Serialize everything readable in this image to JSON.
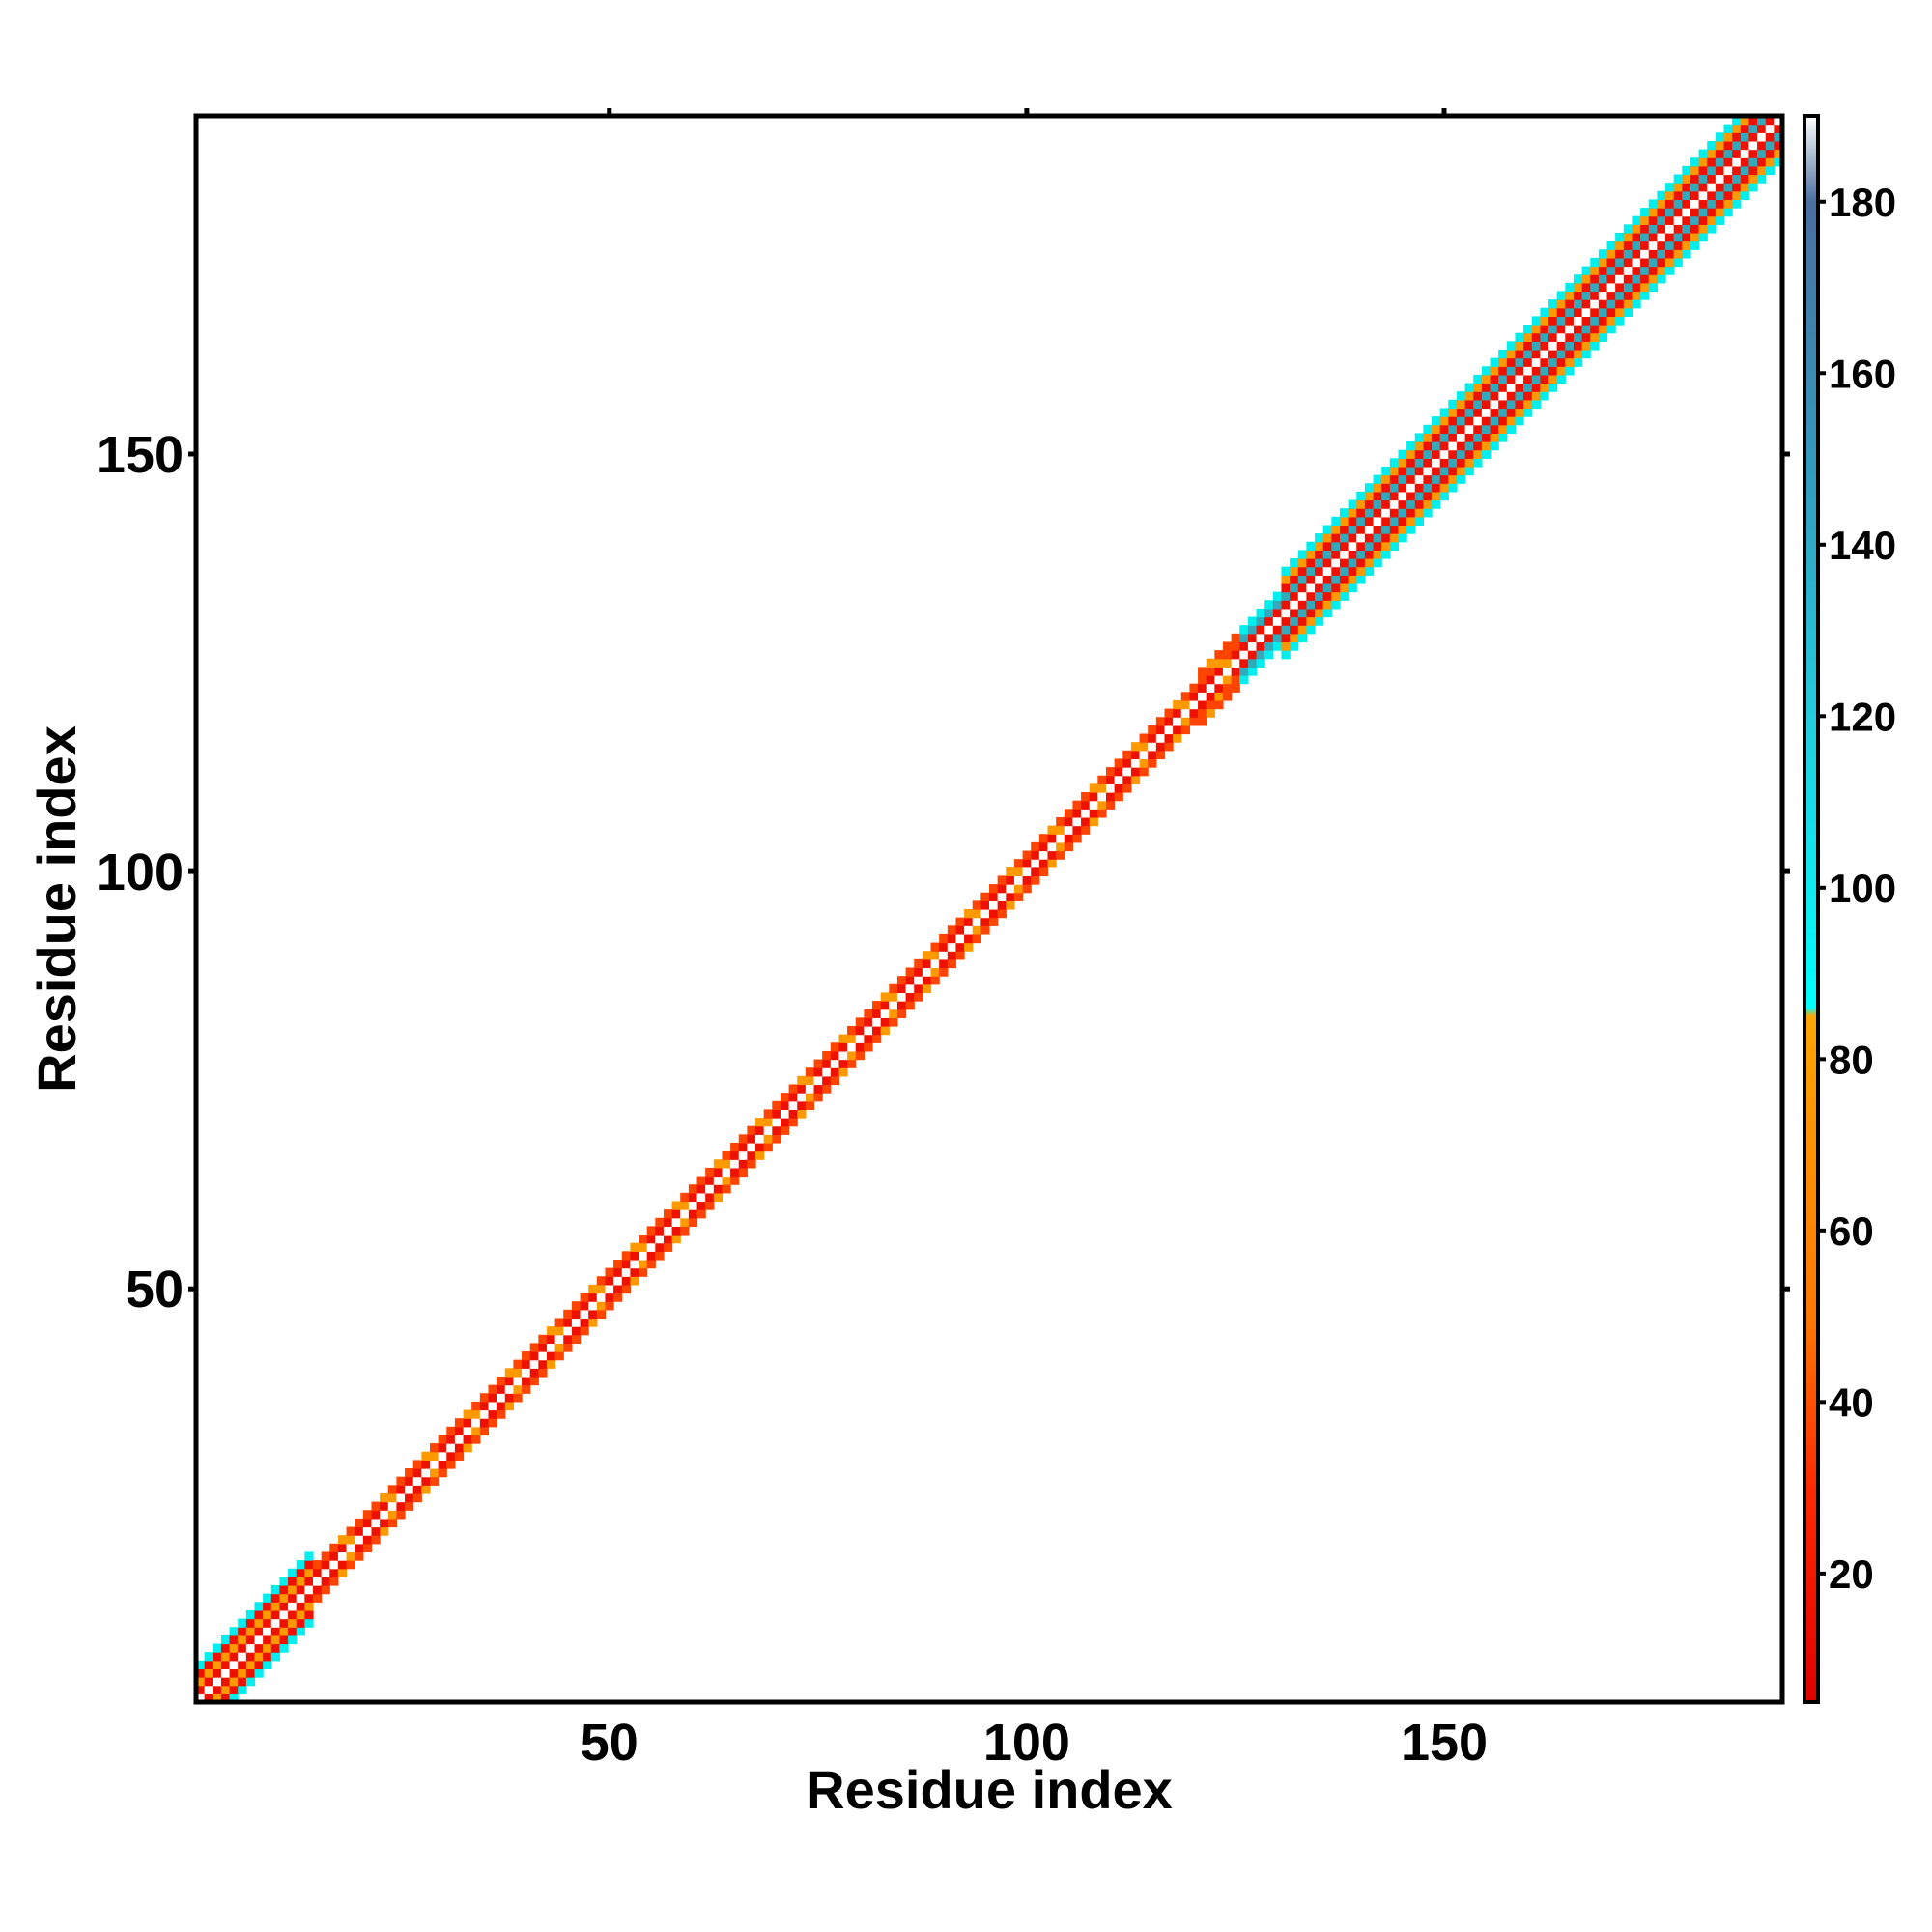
{
  "chart_data": {
    "type": "heatmap",
    "title": "",
    "xlabel": "Residue index",
    "ylabel": "Residue index",
    "xlim": [
      1,
      190
    ],
    "ylim": [
      1,
      190
    ],
    "x_ticks": [
      "50",
      "100",
      "150"
    ],
    "y_ticks": [
      "50",
      "100",
      "150"
    ],
    "colorbar": {
      "range": [
        5,
        190
      ],
      "ticks": [
        "20",
        "40",
        "60",
        "80",
        "100",
        "120",
        "140",
        "160",
        "180"
      ],
      "color_stops": [
        {
          "value": 5,
          "color": "#e00000"
        },
        {
          "value": 30,
          "color": "#ff2a00"
        },
        {
          "value": 50,
          "color": "#ff7800"
        },
        {
          "value": 85,
          "color": "#ffa500"
        },
        {
          "value": 86,
          "color": "#00ffff"
        },
        {
          "value": 120,
          "color": "#22ccdd"
        },
        {
          "value": 150,
          "color": "#3399bb"
        },
        {
          "value": 180,
          "color": "#4a6fa0"
        },
        {
          "value": 190,
          "color": "#ffffff"
        }
      ]
    },
    "grid": false,
    "band": {
      "description_values": "contact band along the diagonal i≈j",
      "segments": [
        {
          "from": 1,
          "to": 14,
          "half_width": 4
        },
        {
          "from": 14,
          "to": 120,
          "half_width": 2
        },
        {
          "from": 120,
          "to": 130,
          "half_width": 3
        },
        {
          "from": 130,
          "to": 190,
          "half_width": 5
        }
      ]
    }
  }
}
